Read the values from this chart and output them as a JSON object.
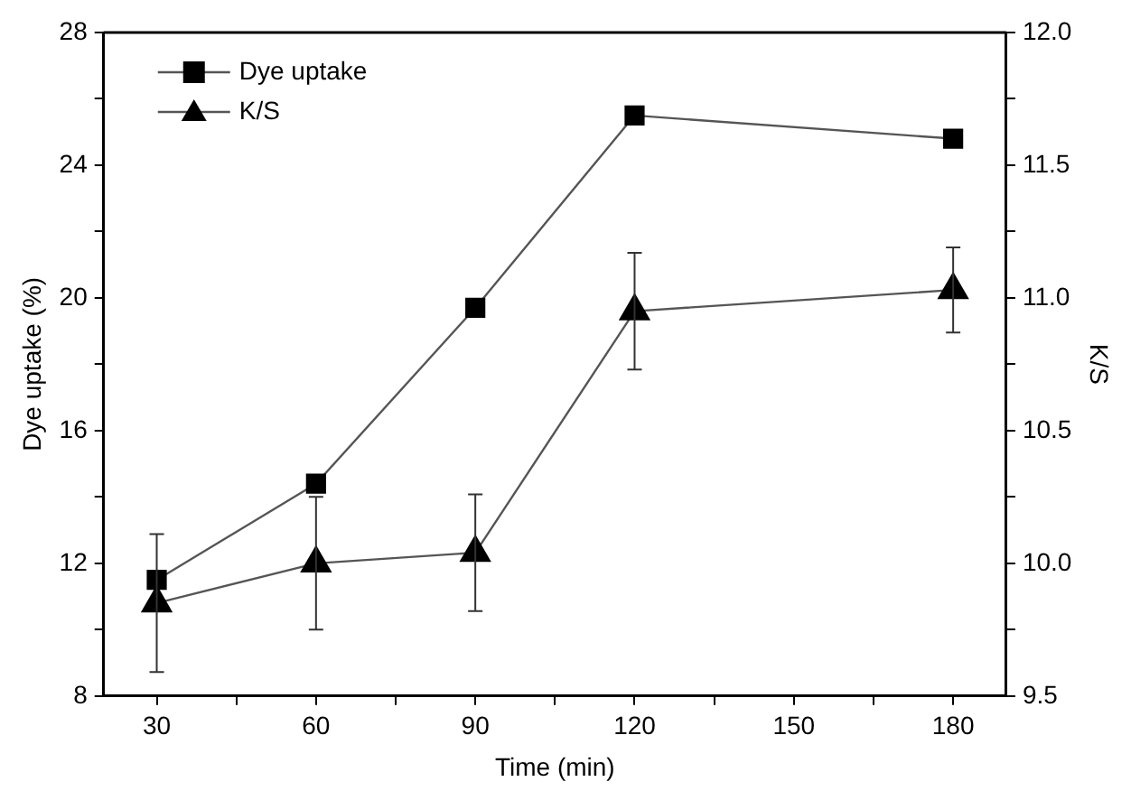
{
  "chart_data": {
    "type": "line",
    "xlabel": "Time (min)",
    "ylabel": "Dye uptake (%)",
    "y2label": "K/S",
    "x": [
      30,
      60,
      90,
      120,
      180
    ],
    "series": [
      {
        "name": "Dye uptake",
        "color": "#000000",
        "marker": "square",
        "values": [
          11.5,
          14.4,
          19.7,
          25.5,
          24.8
        ]
      },
      {
        "name": "K/S",
        "color": "#000000",
        "marker": "triangle",
        "axis": "y2",
        "values": [
          9.85,
          10.0,
          10.04,
          10.95,
          11.03
        ],
        "errors": [
          0.26,
          0.25,
          0.22,
          0.22,
          0.16
        ]
      }
    ],
    "xlim": [
      20,
      190
    ],
    "xticks": [
      30,
      {
        "value": 45,
        "label": null
      },
      60,
      {
        "value": 75,
        "label": null
      },
      90,
      {
        "value": 105,
        "label": null
      },
      120,
      {
        "value": 135,
        "label": null
      },
      150,
      {
        "value": 165,
        "label": null
      },
      180
    ],
    "ylim": [
      8,
      28
    ],
    "yticks": [
      8,
      {
        "value": 10,
        "label": null
      },
      12,
      {
        "value": 14,
        "label": null
      },
      16,
      {
        "value": 18,
        "label": null
      },
      20,
      {
        "value": 22,
        "label": null
      },
      24,
      {
        "value": 26,
        "label": null
      },
      28
    ],
    "y2lim": [
      9.5,
      12.0
    ],
    "y2ticks": [
      {
        "value": 9.5,
        "label": "9.5"
      },
      {
        "value": 9.75,
        "label": null
      },
      {
        "value": 10.0,
        "label": "10.0"
      },
      {
        "value": 10.25,
        "label": null
      },
      {
        "value": 10.5,
        "label": "10.5"
      },
      {
        "value": 10.75,
        "label": null
      },
      {
        "value": 11.0,
        "label": "11.0"
      },
      {
        "value": 11.25,
        "label": null
      },
      {
        "value": 11.5,
        "label": "11.5"
      },
      {
        "value": 11.75,
        "label": null
      },
      {
        "value": 12.0,
        "label": "12.0"
      }
    ],
    "grid": false,
    "legend": "top left",
    "line_style": "solid"
  }
}
